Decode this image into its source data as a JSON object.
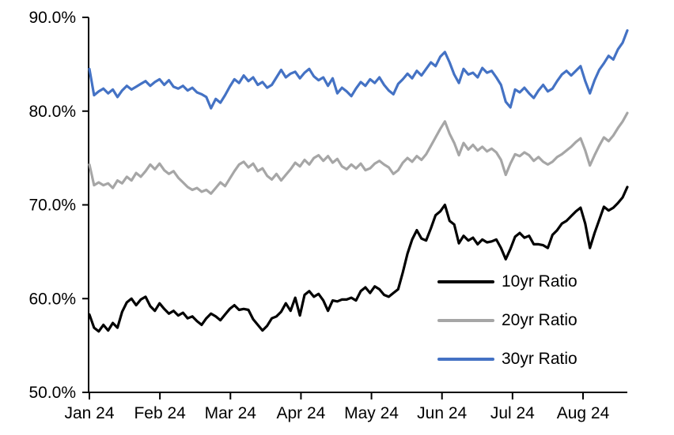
{
  "chart_data": {
    "type": "line",
    "title": "",
    "background": "#ffffff",
    "axis_color": "#000000",
    "x_axis": {
      "tick_labels": [
        "Jan 24",
        "Feb 24",
        "Mar 24",
        "Apr 24",
        "May 24",
        "Jun 24",
        "Jul 24",
        "Aug 24"
      ],
      "gridlines": false
    },
    "y_axis": {
      "tick_labels": [
        "90.0%",
        "80.0%",
        "70.0%",
        "60.0%",
        "50.0%"
      ],
      "tick_values": [
        90,
        80,
        70,
        60,
        50
      ],
      "min": 50,
      "max": 90,
      "unit": "%",
      "gridlines": false
    },
    "legend": {
      "position": "inside-lower-right"
    },
    "series": [
      {
        "name": "10yr Ratio",
        "color": "#000000",
        "line_width": 3.2,
        "values": [
          58.3,
          56.9,
          56.5,
          57.2,
          56.6,
          57.4,
          56.9,
          58.6,
          59.6,
          60.0,
          59.3,
          59.9,
          60.2,
          59.2,
          58.7,
          59.5,
          58.9,
          58.4,
          58.7,
          58.2,
          58.5,
          57.9,
          58.1,
          57.6,
          57.2,
          57.9,
          58.4,
          58.1,
          57.7,
          58.3,
          58.9,
          59.3,
          58.8,
          58.9,
          58.8,
          57.8,
          57.2,
          56.6,
          57.1,
          57.9,
          58.1,
          58.6,
          59.5,
          58.7,
          60.1,
          58.2,
          60.4,
          60.8,
          60.2,
          60.5,
          59.8,
          58.7,
          59.8,
          59.7,
          59.9,
          59.9,
          60.1,
          59.8,
          60.8,
          61.2,
          60.6,
          61.3,
          61.0,
          60.4,
          60.2,
          60.6,
          61.0,
          62.8,
          64.8,
          66.3,
          67.3,
          66.4,
          66.2,
          67.5,
          68.9,
          69.3,
          70.0,
          68.3,
          67.9,
          65.9,
          66.7,
          66.2,
          66.5,
          65.8,
          66.3,
          66.0,
          66.1,
          66.3,
          65.4,
          64.2,
          65.3,
          66.6,
          67.0,
          66.5,
          66.7,
          65.8,
          65.8,
          65.7,
          65.4,
          66.8,
          67.3,
          68.0,
          68.3,
          68.8,
          69.3,
          69.7,
          68.0,
          65.4,
          67.0,
          68.4,
          69.8,
          69.4,
          69.7,
          70.2,
          70.8,
          71.9
        ]
      },
      {
        "name": "20yr Ratio",
        "color": "#A6A6A6",
        "line_width": 3.2,
        "values": [
          74.3,
          72.1,
          72.4,
          72.1,
          72.3,
          71.8,
          72.6,
          72.3,
          73.0,
          72.6,
          73.4,
          73.0,
          73.6,
          74.3,
          73.8,
          74.4,
          73.7,
          73.3,
          73.6,
          72.9,
          72.4,
          71.9,
          71.6,
          71.8,
          71.4,
          71.6,
          71.2,
          71.8,
          72.4,
          72.0,
          72.8,
          73.6,
          74.3,
          74.6,
          74.0,
          74.4,
          73.6,
          73.9,
          73.1,
          72.7,
          73.3,
          72.6,
          73.2,
          73.8,
          74.5,
          74.1,
          74.8,
          74.3,
          75.0,
          75.3,
          74.7,
          75.2,
          74.5,
          74.9,
          74.1,
          73.8,
          74.3,
          73.9,
          74.4,
          73.7,
          73.9,
          74.4,
          74.7,
          74.3,
          74.0,
          73.3,
          73.7,
          74.5,
          75.0,
          74.6,
          75.2,
          74.8,
          75.4,
          76.3,
          77.2,
          78.1,
          78.9,
          77.6,
          76.6,
          75.3,
          76.6,
          75.9,
          76.4,
          75.8,
          76.2,
          75.7,
          76.0,
          75.6,
          74.8,
          73.2,
          74.4,
          75.4,
          75.2,
          75.6,
          75.3,
          74.7,
          75.1,
          74.6,
          74.3,
          74.6,
          75.1,
          75.4,
          75.8,
          76.2,
          76.7,
          77.1,
          75.8,
          74.2,
          75.3,
          76.3,
          77.2,
          76.8,
          77.4,
          78.2,
          78.9,
          79.8
        ]
      },
      {
        "name": "30yr Ratio",
        "color": "#4472C4",
        "line_width": 3.2,
        "values": [
          84.5,
          81.7,
          82.1,
          82.4,
          81.9,
          82.3,
          81.5,
          82.2,
          82.7,
          82.3,
          82.6,
          82.9,
          83.2,
          82.7,
          83.1,
          83.4,
          82.8,
          83.3,
          82.6,
          82.4,
          82.7,
          82.2,
          82.5,
          82.0,
          81.8,
          81.5,
          80.3,
          81.3,
          80.9,
          81.7,
          82.6,
          83.4,
          83.0,
          83.8,
          83.2,
          83.6,
          82.8,
          83.1,
          82.5,
          82.8,
          83.6,
          84.4,
          83.6,
          84.0,
          84.2,
          83.5,
          84.1,
          84.5,
          83.7,
          83.3,
          83.6,
          82.7,
          83.5,
          81.9,
          82.5,
          82.1,
          81.6,
          82.4,
          83.1,
          82.7,
          83.4,
          83.0,
          83.6,
          82.8,
          82.2,
          81.8,
          82.9,
          83.4,
          84.0,
          83.5,
          84.3,
          83.8,
          84.5,
          85.2,
          84.8,
          85.8,
          86.3,
          85.2,
          83.9,
          83.0,
          84.5,
          83.9,
          84.1,
          83.6,
          84.6,
          84.1,
          84.3,
          83.6,
          82.8,
          81.0,
          80.4,
          82.3,
          82.0,
          82.5,
          81.9,
          81.4,
          82.2,
          82.8,
          82.1,
          82.4,
          83.2,
          83.9,
          84.3,
          83.8,
          84.3,
          84.8,
          83.2,
          81.9,
          83.3,
          84.4,
          85.1,
          85.9,
          85.5,
          86.6,
          87.3,
          88.6
        ]
      }
    ]
  }
}
